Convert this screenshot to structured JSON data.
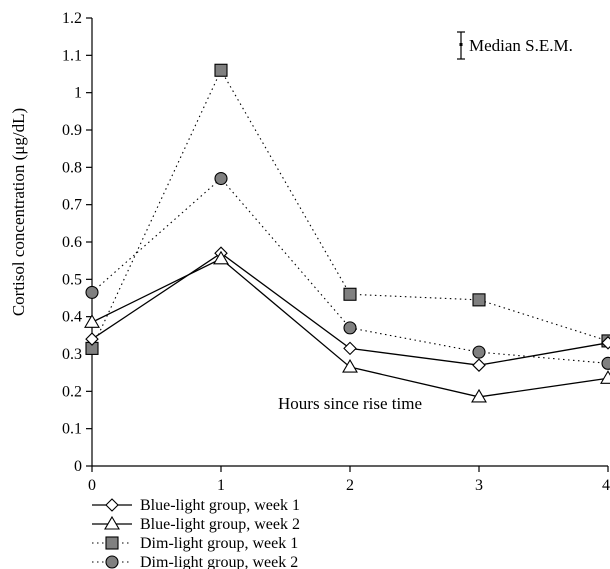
{
  "chart_data": {
    "type": "line",
    "xlabel": "Hours since rise time",
    "ylabel": "Cortisol concentration (μg/dL)",
    "xlim": [
      0,
      4
    ],
    "ylim": [
      0,
      1.2
    ],
    "x_ticks": [
      "0",
      "1",
      "2",
      "3",
      "4"
    ],
    "y_ticks": [
      "0",
      "0.1",
      "0.2",
      "0.3",
      "0.4",
      "0.5",
      "0.6",
      "0.7",
      "0.8",
      "0.9",
      "1",
      "1.1",
      "1.2"
    ],
    "x": [
      0,
      1,
      2,
      3,
      4
    ],
    "annotation": "Median S.E.M.",
    "grid": false,
    "legend_position": "bottom",
    "series": [
      {
        "name": "Blue-light group, week 1",
        "values": [
          0.34,
          0.57,
          0.315,
          0.27,
          0.33
        ],
        "marker": "diamond",
        "line": "solid",
        "color": "#000000",
        "marker_fill": "#ffffff"
      },
      {
        "name": "Blue-light group, week 2",
        "values": [
          0.385,
          0.555,
          0.265,
          0.185,
          0.235
        ],
        "marker": "triangle",
        "line": "solid",
        "color": "#000000",
        "marker_fill": "#ffffff"
      },
      {
        "name": "Dim-light group, week 1",
        "values": [
          0.315,
          1.06,
          0.46,
          0.445,
          0.335
        ],
        "marker": "square",
        "line": "dotted",
        "color": "#000000",
        "marker_fill": "#808080"
      },
      {
        "name": "Dim-light group, week 2",
        "values": [
          0.465,
          0.77,
          0.37,
          0.305,
          0.275
        ],
        "marker": "circle",
        "line": "dotted",
        "color": "#000000",
        "marker_fill": "#808080"
      }
    ]
  }
}
